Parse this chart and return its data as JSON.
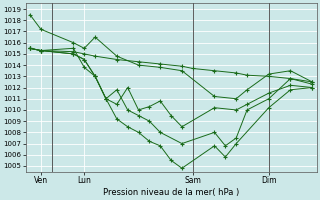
{
  "title": "",
  "xlabel": "Pression niveau de la mer( hPa )",
  "bg_color": "#cce8e8",
  "grid_color": "#ffffff",
  "line_color": "#1a6b1a",
  "ylim": [
    1004.5,
    1019.5
  ],
  "yticks": [
    1005,
    1006,
    1007,
    1008,
    1009,
    1010,
    1011,
    1012,
    1013,
    1014,
    1015,
    1016,
    1017,
    1018,
    1019
  ],
  "xlim": [
    -0.2,
    13.2
  ],
  "xtick_labels": [
    "Ven",
    "Lun",
    "Sam",
    "Dim"
  ],
  "xtick_positions": [
    0.5,
    2.5,
    7.5,
    11.0
  ],
  "vline_positions": [
    1.0,
    7.5,
    11.0
  ],
  "lines": [
    {
      "x": [
        0.0,
        0.5,
        2.0,
        2.5,
        3.0,
        4.0,
        5.0,
        6.0,
        7.0,
        7.5,
        8.5,
        9.5,
        10.0,
        11.0,
        12.0,
        13.0
      ],
      "y": [
        1015.5,
        1015.3,
        1015.2,
        1015.0,
        1014.8,
        1014.5,
        1014.3,
        1014.1,
        1013.9,
        1013.7,
        1013.5,
        1013.3,
        1013.1,
        1013.0,
        1012.8,
        1012.5
      ]
    },
    {
      "x": [
        0.0,
        0.5,
        2.0,
        2.5,
        3.0,
        4.0,
        5.0,
        6.0,
        7.0,
        8.5,
        9.5,
        10.0,
        11.0,
        12.0,
        13.0
      ],
      "y": [
        1018.5,
        1017.2,
        1016.0,
        1015.5,
        1016.5,
        1014.8,
        1014.0,
        1013.8,
        1013.5,
        1011.2,
        1011.0,
        1011.8,
        1013.2,
        1013.5,
        1012.5
      ]
    },
    {
      "x": [
        0.0,
        0.5,
        2.0,
        2.5,
        3.0,
        3.5,
        4.0,
        4.5,
        5.0,
        5.5,
        6.0,
        6.5,
        7.0,
        8.5,
        9.5,
        10.0,
        11.0,
        12.0,
        13.0
      ],
      "y": [
        1015.5,
        1015.3,
        1015.0,
        1014.5,
        1013.0,
        1011.0,
        1010.5,
        1012.0,
        1010.0,
        1010.3,
        1010.8,
        1009.5,
        1008.5,
        1010.2,
        1010.0,
        1010.5,
        1011.5,
        1012.2,
        1012.0
      ]
    },
    {
      "x": [
        0.0,
        0.5,
        2.0,
        2.5,
        3.0,
        3.5,
        4.0,
        4.5,
        5.0,
        5.5,
        6.0,
        7.0,
        8.5,
        9.0,
        9.5,
        10.0,
        11.0,
        12.0,
        13.0
      ],
      "y": [
        1015.5,
        1015.3,
        1015.0,
        1014.5,
        1013.0,
        1011.0,
        1011.8,
        1010.0,
        1009.5,
        1009.0,
        1008.0,
        1007.0,
        1008.0,
        1006.8,
        1007.5,
        1010.0,
        1011.0,
        1012.8,
        1012.3
      ]
    },
    {
      "x": [
        0.0,
        0.5,
        2.0,
        2.5,
        3.0,
        3.5,
        4.0,
        4.5,
        5.0,
        5.5,
        6.0,
        6.5,
        7.0,
        8.5,
        9.0,
        9.5,
        11.0,
        12.0,
        13.0
      ],
      "y": [
        1015.5,
        1015.3,
        1015.5,
        1013.8,
        1013.0,
        1011.0,
        1009.2,
        1008.5,
        1008.0,
        1007.2,
        1006.8,
        1005.5,
        1004.8,
        1006.8,
        1005.8,
        1007.0,
        1010.2,
        1011.8,
        1012.0
      ]
    }
  ]
}
